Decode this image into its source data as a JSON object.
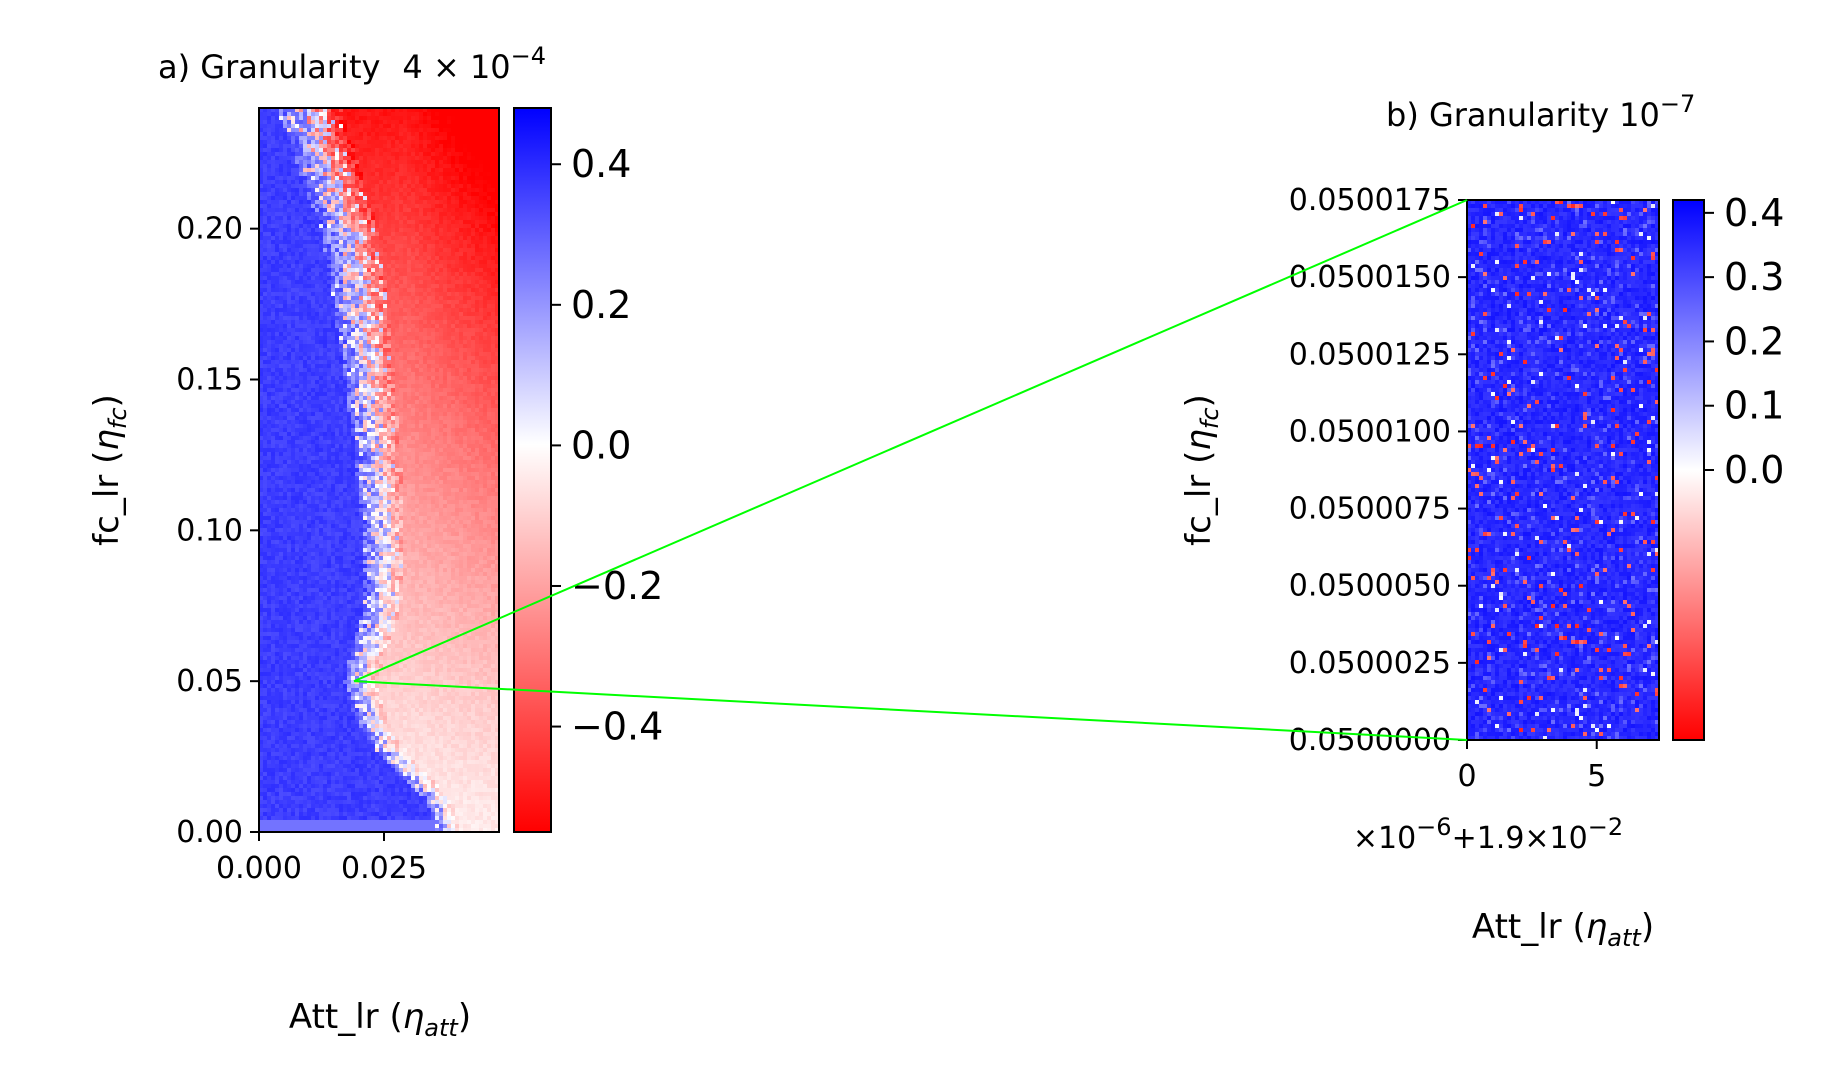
{
  "chart_data": [
    {
      "panel": "a",
      "type": "heatmap",
      "title": "a) Granularity",
      "title_scale": {
        "mantissa": "4",
        "exponent": "−4"
      },
      "xlabel": {
        "base": "Att_lr (",
        "symbol": "η",
        "sub": "att",
        "close": ")"
      },
      "ylabel": {
        "base": "fc_lr (",
        "symbol": "η",
        "sub": "fc",
        "close": ")"
      },
      "xlim": [
        0,
        0.048
      ],
      "ylim": [
        0,
        0.24
      ],
      "xticks": [
        0,
        0.025
      ],
      "xtick_labels": [
        "0.000",
        "0.025"
      ],
      "yticks": [
        0,
        0.05,
        0.1,
        0.15,
        0.2
      ],
      "ytick_labels": [
        "0.00",
        "0.05",
        "0.10",
        "0.15",
        "0.20"
      ],
      "colormap": "bwr_r",
      "colorbar": {
        "range": [
          -0.55,
          0.48
        ],
        "ticks": [
          -0.4,
          -0.2,
          0.0,
          0.2,
          0.4
        ],
        "tick_labels": [
          "−0.4",
          "−0.2",
          "0.0",
          "0.2",
          "0.4"
        ]
      },
      "boundary": {
        "description": "Blue (positive, ~0.45) region at low Att_lr; red (negative) region at high Att_lr. Red deepens toward top-right (~-0.5); pale red (~-0.1) at lower right.",
        "fc_lr": [
          0.0,
          0.01,
          0.02,
          0.03,
          0.04,
          0.05,
          0.06,
          0.07,
          0.08,
          0.1,
          0.12,
          0.15,
          0.18,
          0.2,
          0.22,
          0.24
        ],
        "att_lr_boundary": [
          0.038,
          0.036,
          0.03,
          0.025,
          0.022,
          0.02,
          0.022,
          0.024,
          0.025,
          0.025,
          0.024,
          0.022,
          0.02,
          0.018,
          0.014,
          0.01
        ]
      },
      "zoom_point": {
        "att_lr": 0.019,
        "fc_lr": 0.05
      }
    },
    {
      "panel": "b",
      "type": "heatmap",
      "title": "b) Granularity",
      "title_scale": {
        "mantissa": "10",
        "exponent": "−7"
      },
      "xlabel": {
        "base": "Att_lr (",
        "symbol": "η",
        "sub": "att",
        "close": ")"
      },
      "ylabel": {
        "base": "fc_lr (",
        "symbol": "η",
        "sub": "fc",
        "close": ")"
      },
      "x_offset_label": {
        "pre": "×10",
        "exp1": "−6",
        "mid": "+1.9×10",
        "exp2": "−2"
      },
      "xlim": [
        0,
        7.4
      ],
      "ylim": [
        0.05,
        0.0500175
      ],
      "xticks": [
        0,
        5
      ],
      "xtick_labels": [
        "0",
        "5"
      ],
      "yticks": [
        0.05,
        0.0500025,
        0.050005,
        0.0500075,
        0.05001,
        0.0500125,
        0.050015,
        0.0500175
      ],
      "ytick_labels": [
        "0.0500000",
        "0.0500025",
        "0.0500050",
        "0.0500075",
        "0.0500100",
        "0.0500125",
        "0.0500150",
        "0.0500175"
      ],
      "colormap": "bwr_r",
      "colorbar": {
        "range": [
          -0.42,
          0.42
        ],
        "ticks": [
          0.0,
          0.1,
          0.2,
          0.3,
          0.4
        ],
        "tick_labels": [
          "0.0",
          "0.1",
          "0.2",
          "0.3",
          "0.4"
        ]
      },
      "description": "Almost uniformly blue (~0.4) noisy field with scattered red and white speckles."
    }
  ],
  "colors": {
    "positive": "#0000ff",
    "neutral": "#ffffff",
    "negative": "#ff0000",
    "zoom_lines": "#00ff00"
  }
}
